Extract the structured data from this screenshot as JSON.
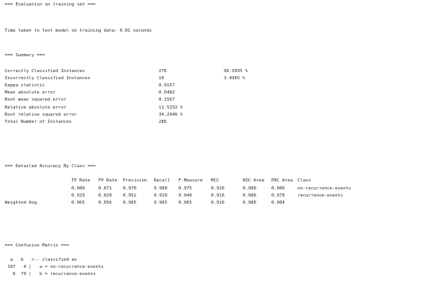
{
  "eval_header": "=== Evaluation on training set ===",
  "time_taken": "Time taken to test model on training data: 0.01 seconds",
  "summary": {
    "header": "=== Summary ===",
    "rows": [
      {
        "label": "Correctly Classified Instances",
        "value": "276",
        "extra": "96.5035 %"
      },
      {
        "label": "Incorrectly Classified Instances",
        "value": "10",
        "extra": "3.4965 %"
      },
      {
        "label": "Kappa statistic",
        "value": "0.9157",
        "extra": ""
      },
      {
        "label": "Mean absolute error",
        "value": "0.0482",
        "extra": ""
      },
      {
        "label": "Root mean squared error",
        "value": "0.1567",
        "extra": ""
      },
      {
        "label": "Relative absolute error",
        "value": "11.5332 %",
        "extra": ""
      },
      {
        "label": "Root relative squared error",
        "value": "34.2946 %",
        "extra": ""
      },
      {
        "label": "Total Number of Instances",
        "value": "286",
        "extra": ""
      }
    ]
  },
  "accuracy": {
    "header": "=== Detailed Accuracy By Class ===",
    "columns": [
      "TP Rate",
      "FP Rate",
      "Precision",
      "Recall",
      "F-Measure",
      "MCC",
      "ROC Area",
      "PRC Area",
      "Class"
    ],
    "rows": [
      {
        "label": "",
        "cells": [
          "0.980",
          "0.071",
          "0.970",
          "0.980",
          "0.975",
          "0.916",
          "0.980",
          "0.986",
          "no-recurrence-events"
        ]
      },
      {
        "label": "",
        "cells": [
          "0.929",
          "0.020",
          "0.952",
          "0.929",
          "0.940",
          "0.916",
          "0.980",
          "0.978",
          "recurrence-events"
        ]
      },
      {
        "label": "Weighted Avg.",
        "cells": [
          "0.965",
          "0.056",
          "0.965",
          "0.965",
          "0.965",
          "0.916",
          "0.980",
          "0.984",
          ""
        ]
      }
    ]
  },
  "confusion": {
    "header": "=== Confusion Matrix ===",
    "col_header": "  a   b   <-- classified as",
    "rows": [
      " 197   4 |   a = no-recurrence-events",
      "   6  79 |   b = recurrence-events"
    ]
  }
}
